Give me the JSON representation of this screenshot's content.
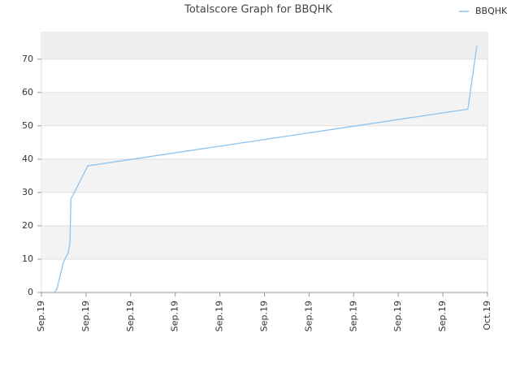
{
  "chart_data": {
    "type": "line",
    "title": "Totalscore Graph for BBQHK",
    "series": [
      {
        "name": "BBQHK",
        "color": "#8ec3ee",
        "x": [
          0.29,
          0.35,
          0.49,
          0.6,
          0.64,
          0.66,
          1.04,
          9.56,
          9.76
        ],
        "values": [
          0,
          1.2,
          9,
          12,
          15,
          28,
          38,
          55,
          74
        ]
      }
    ],
    "xlim": [
      0,
      10
    ],
    "xticks": [
      {
        "value": 0,
        "label": "Sep.19"
      },
      {
        "value": 1,
        "label": "Sep.19"
      },
      {
        "value": 2,
        "label": "Sep.19"
      },
      {
        "value": 3,
        "label": "Sep.19"
      },
      {
        "value": 4,
        "label": "Sep.19"
      },
      {
        "value": 5,
        "label": "Sep.19"
      },
      {
        "value": 6,
        "label": "Sep.19"
      },
      {
        "value": 7,
        "label": "Sep.19"
      },
      {
        "value": 8,
        "label": "Sep.19"
      },
      {
        "value": 9,
        "label": "Sep.19"
      },
      {
        "value": 10,
        "label": "Oct.19"
      }
    ],
    "ylim": [
      0,
      78
    ],
    "yticks": [
      0,
      10,
      20,
      30,
      40,
      50,
      60,
      70
    ],
    "grid": true,
    "legend": "top-right"
  }
}
